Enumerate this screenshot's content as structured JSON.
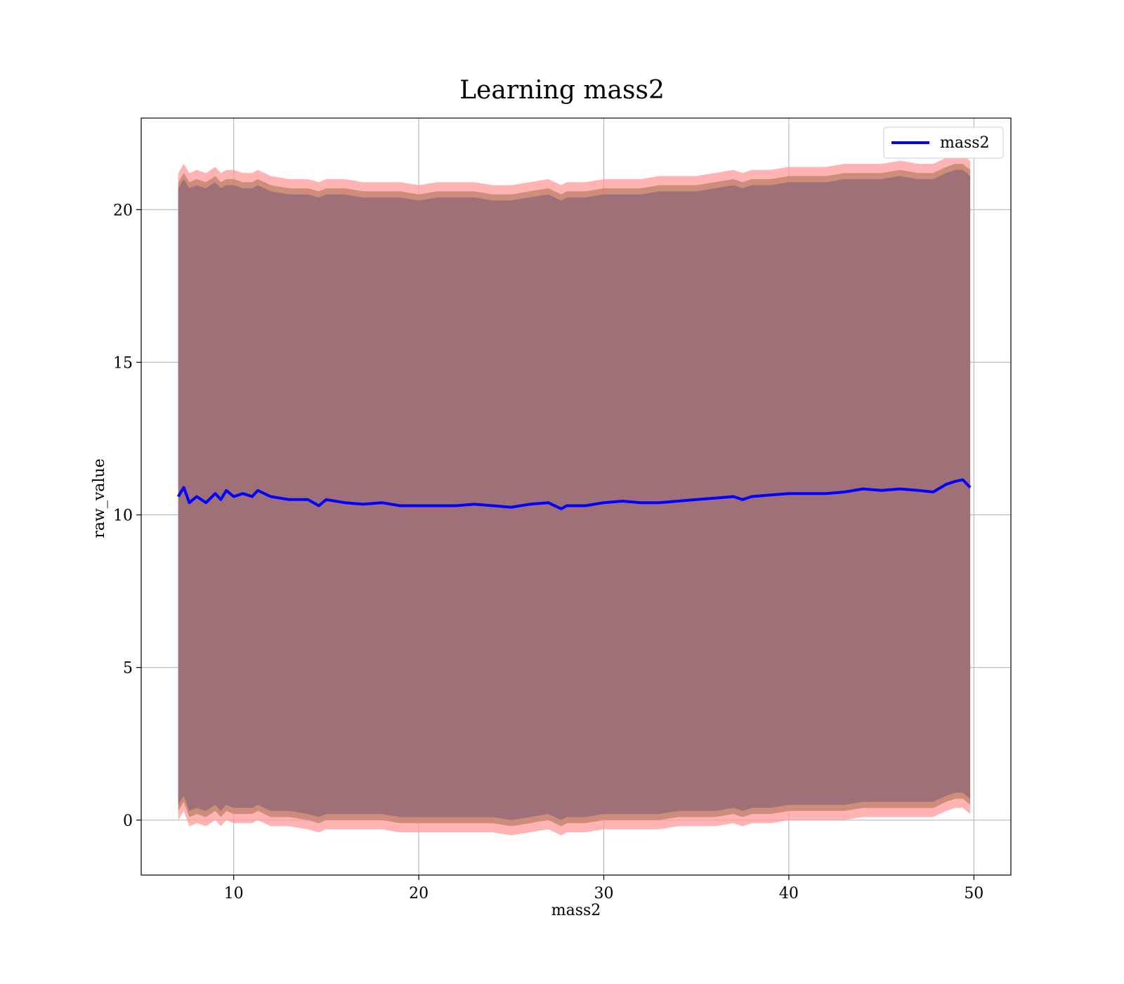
{
  "chart_data": {
    "type": "line",
    "title": "Learning mass2",
    "xlabel": "mass2",
    "ylabel": "raw_value",
    "xlim": [
      5,
      52
    ],
    "ylim": [
      -1.8,
      23
    ],
    "xticks": [
      10,
      20,
      30,
      40,
      50
    ],
    "yticks": [
      0,
      5,
      10,
      15,
      20
    ],
    "grid": true,
    "legend": {
      "placement": "top-right",
      "entries": [
        "mass2"
      ]
    },
    "colors": {
      "line": "#0000ff",
      "outer_band": "#ff9999",
      "middle_band": "#c88873",
      "inner_band": "#a07078",
      "grid": "#b0b0b0"
    },
    "series": [
      {
        "name": "mass2",
        "x": [
          7.0,
          7.3,
          7.6,
          8.0,
          8.5,
          9.0,
          9.3,
          9.6,
          10.0,
          10.5,
          11.0,
          11.3,
          12.0,
          13.0,
          14.0,
          14.6,
          15.0,
          16.0,
          17.0,
          18.0,
          19.0,
          20.0,
          21.0,
          22.0,
          23.0,
          24.0,
          25.0,
          26.0,
          27.0,
          27.7,
          28.0,
          29.0,
          30.0,
          31.0,
          32.0,
          33.0,
          34.0,
          35.0,
          36.0,
          37.0,
          37.5,
          38.0,
          39.0,
          40.0,
          41.0,
          42.0,
          43.0,
          44.0,
          45.0,
          46.0,
          47.0,
          47.8,
          48.5,
          49.0,
          49.4,
          49.8
        ],
        "y": [
          10.6,
          10.9,
          10.4,
          10.6,
          10.4,
          10.7,
          10.5,
          10.8,
          10.6,
          10.7,
          10.6,
          10.8,
          10.6,
          10.5,
          10.5,
          10.3,
          10.5,
          10.4,
          10.35,
          10.4,
          10.3,
          10.3,
          10.3,
          10.3,
          10.35,
          10.3,
          10.25,
          10.35,
          10.4,
          10.2,
          10.3,
          10.3,
          10.4,
          10.45,
          10.4,
          10.4,
          10.45,
          10.5,
          10.55,
          10.6,
          10.5,
          10.6,
          10.65,
          10.7,
          10.7,
          10.7,
          10.75,
          10.85,
          10.8,
          10.85,
          10.8,
          10.75,
          11.0,
          11.1,
          11.15,
          10.9
        ],
        "outer_band_upper": [
          21.2,
          21.5,
          21.2,
          21.3,
          21.2,
          21.4,
          21.2,
          21.3,
          21.3,
          21.2,
          21.2,
          21.3,
          21.1,
          21.0,
          21.0,
          20.9,
          21.0,
          21.0,
          20.9,
          20.9,
          20.9,
          20.8,
          20.9,
          20.9,
          20.9,
          20.8,
          20.8,
          20.9,
          21.0,
          20.8,
          20.9,
          20.9,
          21.0,
          21.0,
          21.0,
          21.1,
          21.1,
          21.1,
          21.2,
          21.3,
          21.2,
          21.3,
          21.3,
          21.4,
          21.4,
          21.4,
          21.5,
          21.5,
          21.5,
          21.6,
          21.5,
          21.5,
          21.7,
          21.8,
          21.8,
          21.6
        ],
        "outer_band_lower": [
          0.0,
          0.3,
          -0.2,
          -0.1,
          -0.2,
          0.0,
          -0.2,
          0.0,
          -0.1,
          -0.1,
          -0.1,
          0.0,
          -0.2,
          -0.2,
          -0.3,
          -0.4,
          -0.3,
          -0.3,
          -0.3,
          -0.3,
          -0.4,
          -0.4,
          -0.4,
          -0.4,
          -0.4,
          -0.4,
          -0.5,
          -0.4,
          -0.3,
          -0.5,
          -0.4,
          -0.4,
          -0.3,
          -0.3,
          -0.3,
          -0.3,
          -0.2,
          -0.2,
          -0.2,
          -0.1,
          -0.2,
          -0.1,
          -0.1,
          0.0,
          0.0,
          0.0,
          0.0,
          0.1,
          0.1,
          0.1,
          0.1,
          0.1,
          0.3,
          0.4,
          0.4,
          0.2
        ],
        "middle_band_upper": [
          20.9,
          21.2,
          20.9,
          21.0,
          20.9,
          21.1,
          20.9,
          21.0,
          21.0,
          20.9,
          20.9,
          21.0,
          20.8,
          20.7,
          20.7,
          20.6,
          20.7,
          20.7,
          20.6,
          20.6,
          20.6,
          20.5,
          20.6,
          20.6,
          20.6,
          20.5,
          20.5,
          20.6,
          20.7,
          20.5,
          20.6,
          20.6,
          20.7,
          20.7,
          20.7,
          20.8,
          20.8,
          20.8,
          20.9,
          21.0,
          20.9,
          21.0,
          21.0,
          21.1,
          21.1,
          21.1,
          21.2,
          21.2,
          21.2,
          21.3,
          21.2,
          21.2,
          21.4,
          21.5,
          21.5,
          21.3
        ],
        "middle_band_lower": [
          0.3,
          0.6,
          0.1,
          0.2,
          0.1,
          0.3,
          0.1,
          0.3,
          0.2,
          0.2,
          0.2,
          0.3,
          0.1,
          0.1,
          0.0,
          -0.1,
          0.0,
          0.0,
          0.0,
          0.0,
          -0.1,
          -0.1,
          -0.1,
          -0.1,
          -0.1,
          -0.1,
          -0.2,
          -0.1,
          0.0,
          -0.2,
          -0.1,
          -0.1,
          0.0,
          0.0,
          0.0,
          0.0,
          0.1,
          0.1,
          0.1,
          0.2,
          0.1,
          0.2,
          0.2,
          0.3,
          0.3,
          0.3,
          0.3,
          0.4,
          0.4,
          0.4,
          0.4,
          0.4,
          0.6,
          0.7,
          0.7,
          0.5
        ]
      }
    ]
  }
}
